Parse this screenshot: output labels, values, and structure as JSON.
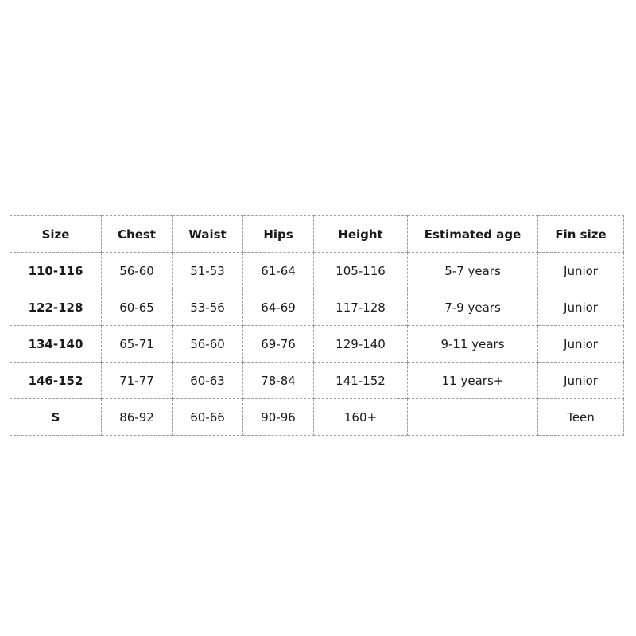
{
  "colors": {
    "background": "#ffffff",
    "border": "#9e9e9e",
    "text": "#1a1a1a"
  },
  "chart_data": {
    "type": "table",
    "title": "",
    "columns": [
      "Size",
      "Chest",
      "Waist",
      "Hips",
      "Height",
      "Estimated age",
      "Fin size"
    ],
    "rows": [
      [
        "110-116",
        "56-60",
        "51-53",
        "61-64",
        "105-116",
        "5-7 years",
        "Junior"
      ],
      [
        "122-128",
        "60-65",
        "53-56",
        "64-69",
        "117-128",
        "7-9 years",
        "Junior"
      ],
      [
        "134-140",
        "65-71",
        "56-60",
        "69-76",
        "129-140",
        "9-11 years",
        "Junior"
      ],
      [
        "146-152",
        "71-77",
        "60-63",
        "78-84",
        "141-152",
        "11 years+",
        "Junior"
      ],
      [
        "S",
        "86-92",
        "60-66",
        "90-96",
        "160+",
        "",
        "Teen"
      ]
    ],
    "layout": {
      "grid": "dashed",
      "header_bold": true,
      "first_column_bold": true
    }
  }
}
